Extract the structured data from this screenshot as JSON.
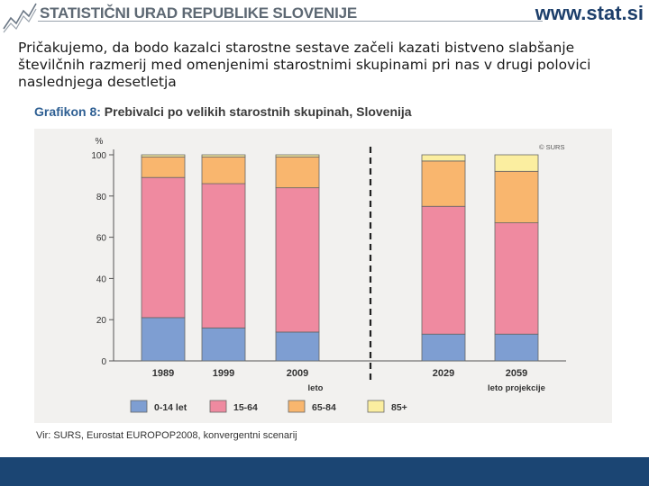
{
  "header": {
    "org_name": "STATISTIČNI URAD REPUBLIKE SLOVENIJE",
    "site_url": "www.stat.si"
  },
  "intro_text": "Pričakujemo, da bodo kazalci starostne sestave začeli kazati bistveno slabšanje številčnih razmerij med omenjenimi starostnimi skupinami pri nas v drugi polovici naslednjega desetletja",
  "chart_data": {
    "type": "bar",
    "stacked": true,
    "title_prefix": "Grafikon 8:",
    "title": "Prebivalci po velikih starostnih skupinah, Slovenija",
    "copyright": "© SURS",
    "ylabel": "%",
    "ylim": [
      0,
      100
    ],
    "yticks": [
      0,
      20,
      40,
      60,
      80,
      100
    ],
    "categories": [
      "1989",
      "1999",
      "2009",
      "2029",
      "2059"
    ],
    "xlabel_actual": "leto",
    "xlabel_projection": "leto projekcije",
    "split_after_index": 2,
    "series": [
      {
        "name": "0-14 let",
        "color": "#7e9ed2",
        "values": [
          21,
          16,
          14,
          13,
          13
        ]
      },
      {
        "name": "15-64",
        "color": "#ef8aa0",
        "values": [
          68,
          70,
          70,
          62,
          54
        ]
      },
      {
        "name": "65-84",
        "color": "#f9b66e",
        "values": [
          10,
          13,
          15,
          22,
          25
        ]
      },
      {
        "name": "85+",
        "color": "#fbeea0",
        "values": [
          1,
          1,
          1,
          3,
          8
        ]
      }
    ]
  },
  "source_note": "Vir: SURS, Eurostat EUROPOP2008, konvergentni scenarij",
  "colors": {
    "footer": "#1b4573",
    "panel": "#f2f1ef"
  }
}
